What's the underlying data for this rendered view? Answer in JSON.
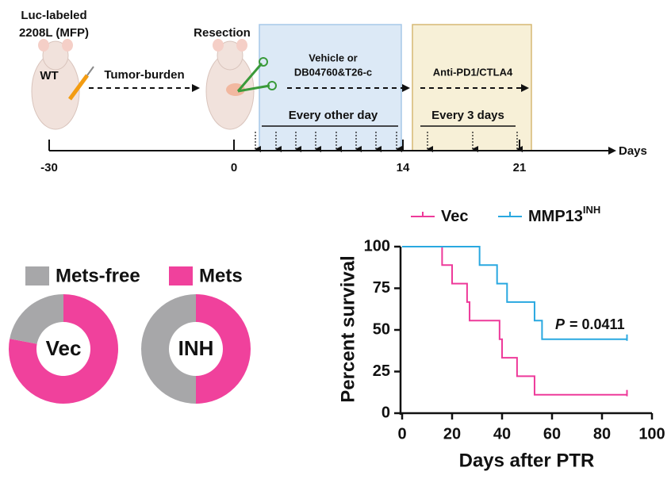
{
  "timeline": {
    "model_label": [
      "Luc-labeled",
      "2208L (MFP)"
    ],
    "wt_label": "WT",
    "tumor_label": "Tumor-burden",
    "resection_label": "Resection",
    "treatment1": [
      "Vehicle or",
      "DB04760&T26-c"
    ],
    "schedule1": "Every other day",
    "treatment2": "Anti-PD1/CTLA4",
    "schedule2": "Every 3 days",
    "axis_label": "Days",
    "ticks": [
      "-30",
      "0",
      "14",
      "21"
    ]
  },
  "chart_data": [
    {
      "type": "donut",
      "categories": [
        "Mets-free",
        "Mets"
      ],
      "colors": [
        "#a7a7a9",
        "#f0419c"
      ],
      "series": [
        {
          "name": "Vec",
          "values": [
            22,
            78
          ]
        },
        {
          "name": "INH",
          "values": [
            50,
            50
          ]
        }
      ]
    },
    {
      "type": "step",
      "x_label": "Days after PTR",
      "y_label": "Percent survival",
      "annotation_symbol": "P",
      "annotation_text": "= 0.0411",
      "xlim": [
        0,
        100
      ],
      "xticks": [
        0,
        20,
        40,
        60,
        80,
        100
      ],
      "ylim": [
        0,
        100
      ],
      "yticks": [
        0,
        25,
        50,
        75,
        100
      ],
      "series": [
        {
          "name": "Vec",
          "color": "#ee3a9a",
          "x": [
            0,
            16,
            20,
            26,
            27,
            39,
            40,
            46,
            53,
            90
          ],
          "values": [
            100,
            88.9,
            77.8,
            66.7,
            55.6,
            44.4,
            33.3,
            22.2,
            11.1,
            11.1
          ]
        },
        {
          "name": "MMP13",
          "name_superscript": "INH",
          "color": "#29a8e0",
          "x": [
            0,
            31,
            38,
            42,
            53,
            56,
            90
          ],
          "values": [
            100,
            88.9,
            77.8,
            66.7,
            55.6,
            44.4,
            44.4
          ]
        }
      ]
    }
  ]
}
